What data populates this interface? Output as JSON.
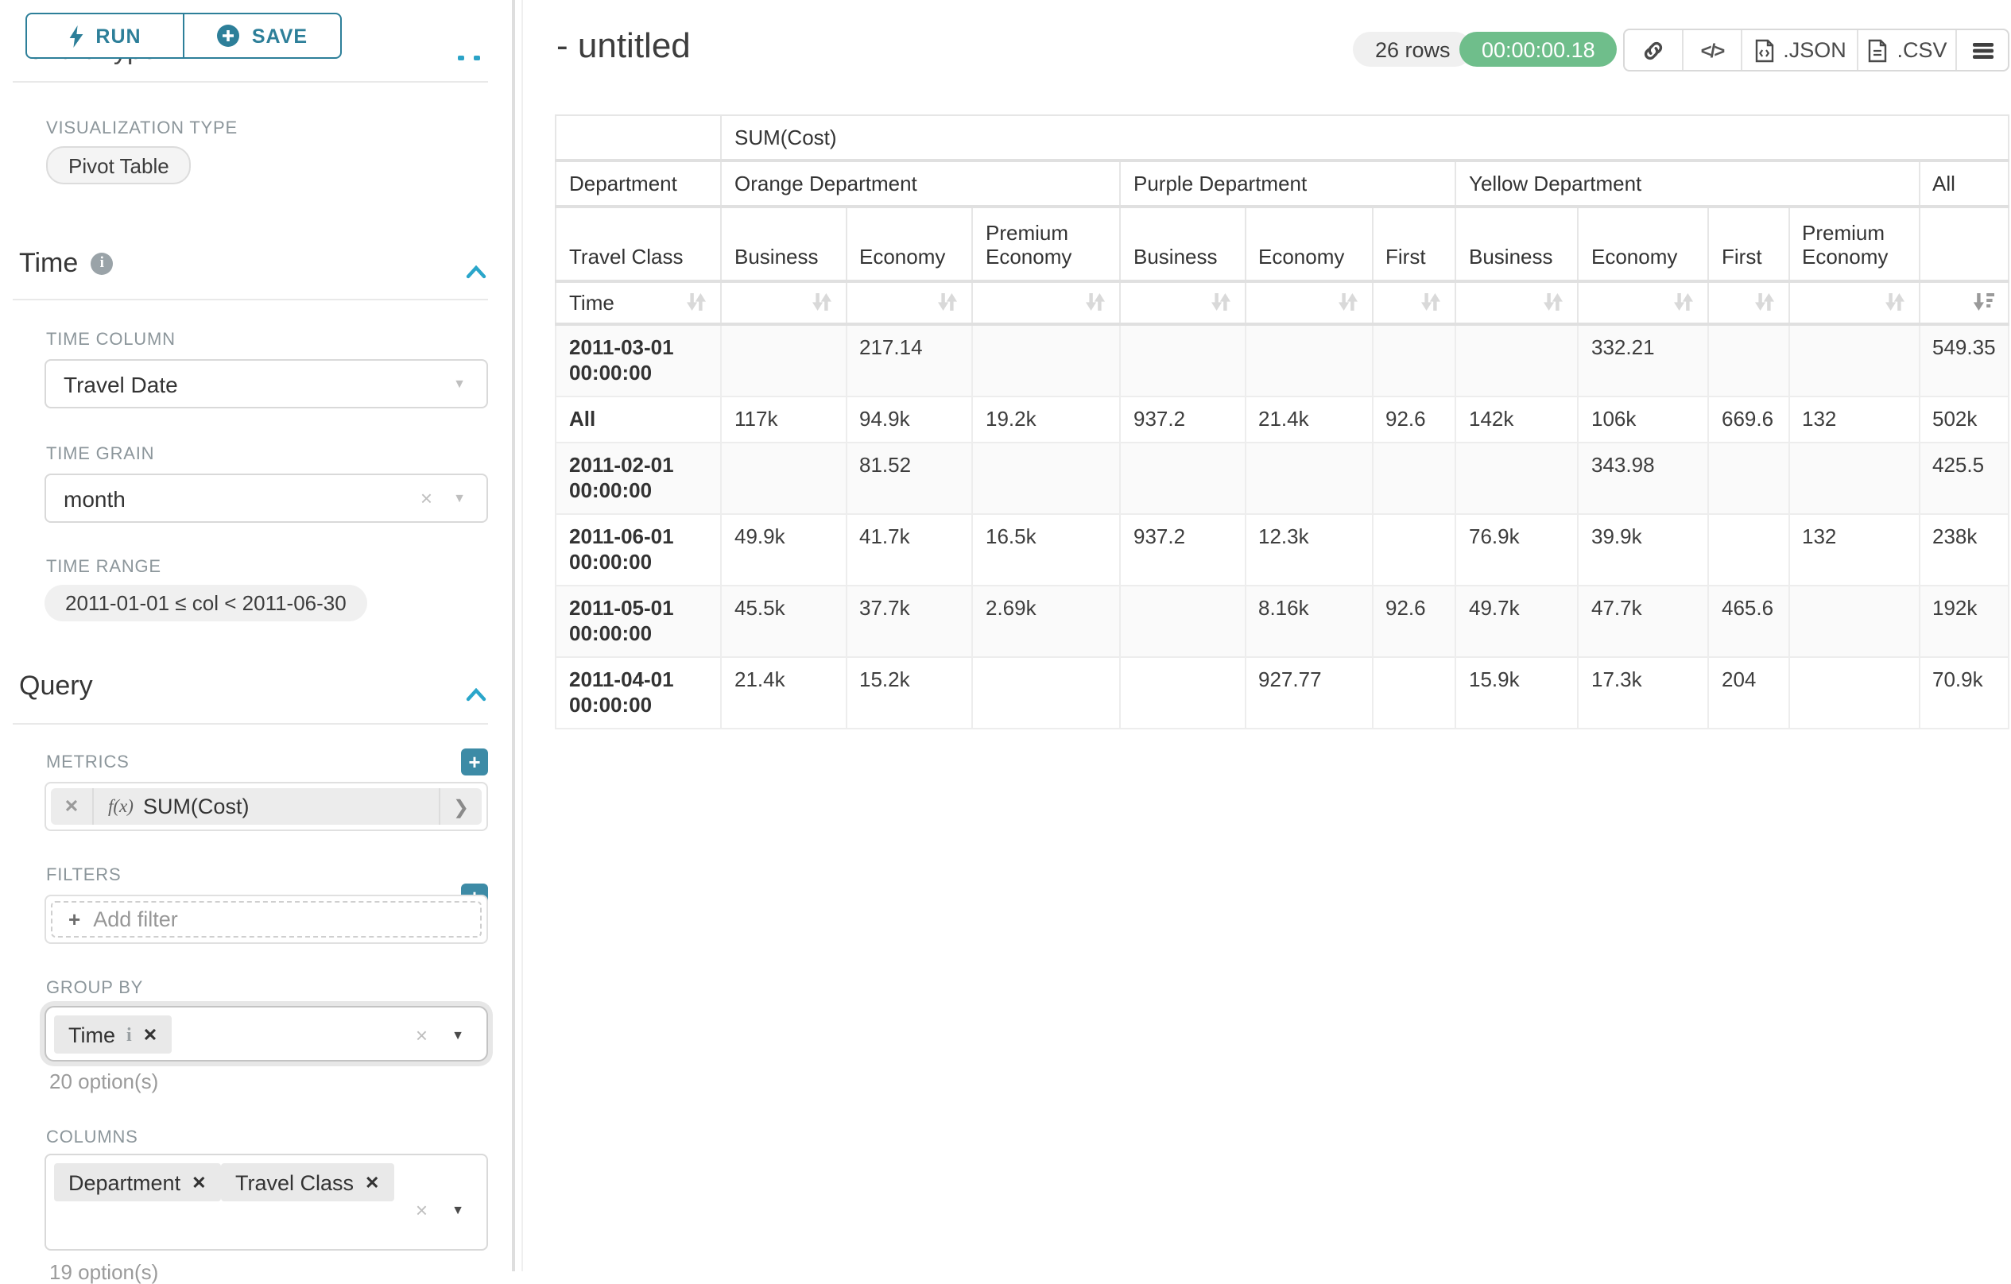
{
  "control_panel": {
    "run_button": "RUN",
    "save_button": "SAVE",
    "scrolled_section_title": "Chart Type",
    "viz_type_label": "VISUALIZATION TYPE",
    "viz_type_value": "Pivot Table",
    "time_section": {
      "title": "Time",
      "time_column_label": "TIME COLUMN",
      "time_column_value": "Travel Date",
      "time_grain_label": "TIME GRAIN",
      "time_grain_value": "month",
      "time_range_label": "TIME RANGE",
      "time_range_value": "2011-01-01 ≤ col < 2011-06-30"
    },
    "query_section": {
      "title": "Query",
      "metrics_label": "METRICS",
      "metric_prefix": "f(x)",
      "metric_value": "SUM(Cost)",
      "filters_label": "FILTERS",
      "add_filter_placeholder": "Add filter",
      "group_by_label": "GROUP BY",
      "group_by_tags": [
        "Time"
      ],
      "group_by_options_hint": "20 option(s)",
      "columns_label": "COLUMNS",
      "columns_tags": [
        "Department",
        "Travel Class"
      ],
      "columns_options_hint": "19 option(s)"
    }
  },
  "chart_header": {
    "title": "- untitled",
    "row_count_badge": "26 rows",
    "timer_badge": "00:00:00.18",
    "export_json_label": ".JSON",
    "export_csv_label": ".CSV"
  },
  "pivot_table": {
    "metric_header": "SUM(Cost)",
    "row_dimension_label": "Department",
    "row_subdimension_label": "Travel Class",
    "time_axis_label": "Time",
    "column_groups": [
      {
        "label": "Orange Department",
        "columns": [
          "Business",
          "Economy",
          "Premium Economy"
        ]
      },
      {
        "label": "Purple Department",
        "columns": [
          "Business",
          "Economy",
          "First"
        ]
      },
      {
        "label": "Yellow Department",
        "columns": [
          "Business",
          "Economy",
          "First",
          "Premium Economy"
        ]
      },
      {
        "label": "All",
        "columns": [
          ""
        ]
      }
    ],
    "rows": [
      {
        "label": "2011-03-01 00:00:00",
        "values": [
          "",
          "217.14",
          "",
          "",
          "",
          "",
          "",
          "332.21",
          "",
          "",
          "549.35"
        ]
      },
      {
        "label": "All",
        "values": [
          "117k",
          "94.9k",
          "19.2k",
          "937.2",
          "21.4k",
          "92.6",
          "142k",
          "106k",
          "669.6",
          "132",
          "502k"
        ]
      },
      {
        "label": "2011-02-01 00:00:00",
        "values": [
          "",
          "81.52",
          "",
          "",
          "",
          "",
          "",
          "343.98",
          "",
          "",
          "425.5"
        ]
      },
      {
        "label": "2011-06-01 00:00:00",
        "values": [
          "49.9k",
          "41.7k",
          "16.5k",
          "937.2",
          "12.3k",
          "",
          "76.9k",
          "39.9k",
          "",
          "132",
          "238k"
        ]
      },
      {
        "label": "2011-05-01 00:00:00",
        "values": [
          "45.5k",
          "37.7k",
          "2.69k",
          "",
          "8.16k",
          "92.6",
          "49.7k",
          "47.7k",
          "465.6",
          "",
          "192k"
        ]
      },
      {
        "label": "2011-04-01 00:00:00",
        "values": [
          "21.4k",
          "15.2k",
          "",
          "",
          "927.77",
          "",
          "15.9k",
          "17.3k",
          "204",
          "",
          "70.9k"
        ]
      }
    ]
  },
  "colors": {
    "accent_teal": "#2d7f99",
    "chevron_blue": "#2aa6ca",
    "add_button_teal": "#3d8ba6",
    "timer_green": "#6fbe8b"
  }
}
